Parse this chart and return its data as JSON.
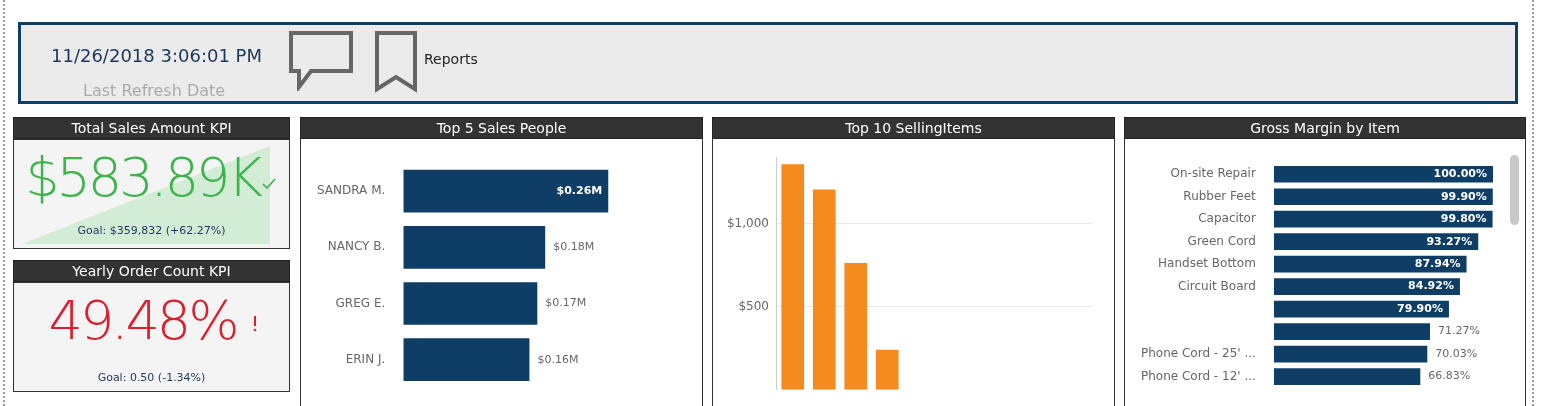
{
  "chart_data": [
    {
      "type": "other",
      "annotations": [
        "11/26/2018 3:06:01 PM",
        "Last Refresh Date",
        "Reports"
      ]
    },
    {
      "type": "other",
      "title": "Total Sales Amount KPI",
      "color": "#3cb44b",
      "annotations": [
        "$583.89K",
        "Goal: $359,832 (+62.27%)"
      ]
    },
    {
      "type": "other",
      "title": "Yearly Order Count KPI",
      "color": "#d9202f",
      "annotations": [
        "49.48%",
        "Goal: 0.50 (-1.34%)"
      ]
    },
    {
      "type": "bar",
      "orientation": "horizontal",
      "title": "Top 5 Sales People",
      "categories": [
        "SANDRA M.",
        "NANCY B.",
        "GREG E.",
        "ERIN J."
      ],
      "values": [
        0.26,
        0.18,
        0.17,
        0.16
      ],
      "value_labels": [
        "$0.26M",
        "$0.18M",
        "$0.17M",
        "$0.16M"
      ],
      "color": "#0e3e66"
    },
    {
      "type": "bar",
      "title": "Top 10 SellingItems",
      "categories": [
        null,
        null,
        null,
        null,
        null,
        null,
        null,
        null,
        null,
        null
      ],
      "values": [
        1357,
        1205,
        762,
        241,
        null,
        null,
        null,
        null,
        null,
        null
      ],
      "color": "#f58a1f",
      "ylim": [
        0,
        1400
      ],
      "yticks": [
        {
          "value": 500,
          "label": "$500"
        },
        {
          "value": 1000,
          "label": "$1,000"
        }
      ],
      "grid": "y"
    },
    {
      "type": "bar",
      "orientation": "horizontal",
      "title": "Gross Margin by Item",
      "categories": [
        "On-site Repair",
        "Rubber Feet",
        "Capacitor",
        "Green Cord",
        "Handset Bottom",
        "Circuit Board",
        null,
        null,
        "Phone Cord - 25' ...",
        "Phone Cord - 12' ..."
      ],
      "values": [
        100.0,
        99.9,
        99.8,
        93.27,
        87.94,
        84.92,
        79.9,
        71.27,
        70.03,
        66.83
      ],
      "value_labels": [
        "100.00%",
        "99.90%",
        "99.80%",
        "93.27%",
        "87.94%",
        "84.92%",
        "79.90%",
        "71.27%",
        "70.03%",
        "66.83%"
      ],
      "color": "#0e3e66"
    }
  ]
}
